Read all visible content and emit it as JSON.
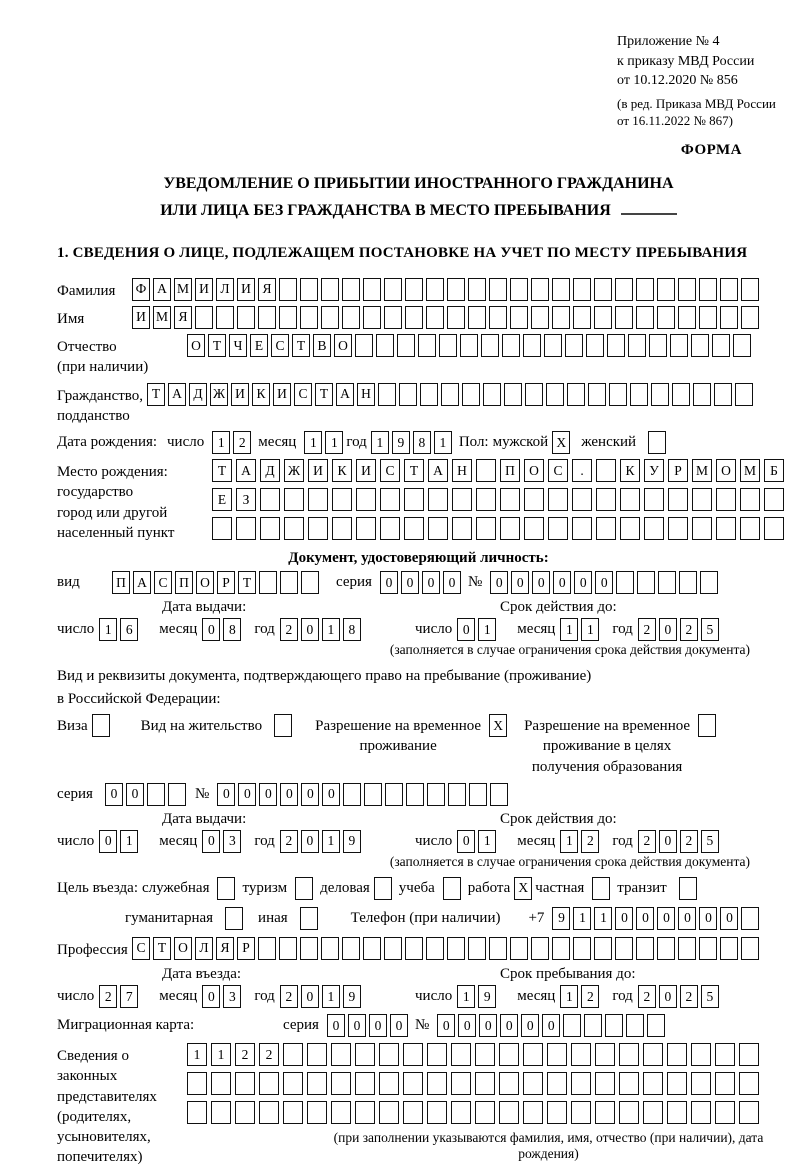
{
  "page": {
    "header": {
      "appendix_lines": [
        "Приложение № 4",
        "к приказу МВД России",
        "от 10.12.2020 № 856"
      ],
      "amendment_lines": [
        "(в ред. Приказа МВД России",
        "от 16.11.2022 № 867)"
      ],
      "form_label": "ФОРМА"
    },
    "title": {
      "line1": "УВЕДОМЛЕНИЕ О ПРИБЫТИИ ИНОСТРАННОГО ГРАЖДАНИНА",
      "line2": "ИЛИ ЛИЦА БЕЗ ГРАЖДАНСТВА В МЕСТО ПРЕБЫВАНИЯ"
    },
    "section1_heading": "1. СВЕДЕНИЯ О ЛИЦЕ, ПОДЛЕЖАЩЕМ ПОСТАНОВКЕ НА УЧЕТ ПО МЕСТУ ПРЕБЫВАНИЯ"
  },
  "labels": {
    "day": "число",
    "month": "месяц",
    "year": "год",
    "series": "серия",
    "number": "№",
    "issue_date": "Дата выдачи:",
    "valid_until": "Срок действия до:",
    "entry_date": "Дата въезда:",
    "stay_until": "Срок пребывания до:",
    "validity_note": "(заполняется в случае ограничения срока действия документа)"
  },
  "surname": {
    "label": "Фамилия",
    "cells": {
      "value": "ФАМИЛИЯ",
      "len": 30
    }
  },
  "name": {
    "label": "Имя",
    "cells": {
      "value": "ИМЯ",
      "len": 30
    }
  },
  "patronymic": {
    "label": "Отчество",
    "label2": "(при наличии)",
    "cells": {
      "value": "ОТЧЕСТВО",
      "len": 27
    }
  },
  "citizenship": {
    "label": "Гражданство,",
    "label2": "подданство",
    "cells": {
      "value": "ТАДЖИКИСТАН",
      "len": 29
    }
  },
  "birth_date": {
    "label": "Дата рождения:",
    "day": {
      "value": "12",
      "len": 2
    },
    "month": {
      "value": "11",
      "len": 2
    },
    "year": {
      "value": "1981",
      "len": 4
    },
    "sex_label": "Пол:",
    "male_label": "мужской",
    "male": {
      "value": "X",
      "len": 1
    },
    "female_label": "женский",
    "female": {
      "value": "",
      "len": 1
    }
  },
  "birth_place": {
    "label_lines": [
      "Место рождения:",
      "государство",
      "город или другой",
      "населенный пункт"
    ],
    "row1": {
      "value": "ТАДЖИКИСТАН ПОС. КУРМОМБ",
      "len": 24
    },
    "row2": {
      "value": "ЕЗ",
      "len": 24
    },
    "row3": {
      "value": "",
      "len": 24
    }
  },
  "identity_doc": {
    "heading": "Документ, удостоверяющий личность:",
    "kind_label": "вид",
    "kind": {
      "value": "ПАСПОРТ",
      "len": 10
    },
    "series": {
      "value": "0000",
      "len": 4
    },
    "number": {
      "value": "000000",
      "len": 11
    },
    "issue": {
      "day": {
        "value": "16",
        "len": 2
      },
      "month": {
        "value": "08",
        "len": 2
      },
      "year": {
        "value": "2018",
        "len": 4
      }
    },
    "valid": {
      "day": {
        "value": "01",
        "len": 2
      },
      "month": {
        "value": "11",
        "len": 2
      },
      "year": {
        "value": "2025",
        "len": 4
      }
    }
  },
  "residence_doc": {
    "line1": "Вид и реквизиты документа, подтверждающего право на пребывание (проживание)",
    "line2": "в Российской Федерации:",
    "visa_label": "Виза",
    "visa": {
      "value": "",
      "len": 1
    },
    "residence_permit_label": "Вид на жительство",
    "residence_permit": {
      "value": "",
      "len": 1
    },
    "temp_permit_label_lines": [
      "Разрешение на временное",
      "проживание"
    ],
    "temp_permit": {
      "value": "X",
      "len": 1
    },
    "edu_permit_label_lines": [
      "Разрешение на временное",
      "проживание в целях",
      "получения образования"
    ],
    "edu_permit": {
      "value": "",
      "len": 1
    },
    "series": {
      "value": "00",
      "len": 4
    },
    "number": {
      "value": "000000",
      "len": 14
    },
    "issue": {
      "day": {
        "value": "01",
        "len": 2
      },
      "month": {
        "value": "03",
        "len": 2
      },
      "year": {
        "value": "2019",
        "len": 4
      }
    },
    "valid": {
      "day": {
        "value": "01",
        "len": 2
      },
      "month": {
        "value": "12",
        "len": 2
      },
      "year": {
        "value": "2025",
        "len": 4
      }
    }
  },
  "purpose": {
    "label": "Цель въезда:",
    "options": [
      {
        "label": "служебная",
        "mark": {
          "value": "",
          "len": 1
        }
      },
      {
        "label": "туризм",
        "mark": {
          "value": "",
          "len": 1
        }
      },
      {
        "label": "деловая",
        "mark": {
          "value": "",
          "len": 1
        }
      },
      {
        "label": "учеба",
        "mark": {
          "value": "",
          "len": 1
        }
      },
      {
        "label": "работа",
        "mark": {
          "value": "X",
          "len": 1
        }
      },
      {
        "label": "частная",
        "mark": {
          "value": "",
          "len": 1
        }
      },
      {
        "label": "транзит",
        "mark": {
          "value": "",
          "len": 1
        }
      }
    ],
    "options2": [
      {
        "label": "гуманитарная",
        "mark": {
          "value": "",
          "len": 1
        }
      },
      {
        "label": "иная",
        "mark": {
          "value": "",
          "len": 1
        }
      }
    ]
  },
  "phone": {
    "label": "Телефон (при наличии)",
    "prefix": "+7",
    "cells": {
      "value": "911000000",
      "len": 10
    }
  },
  "profession": {
    "label": "Профессия",
    "cells": {
      "value": "СТОЛЯР",
      "len": 30
    }
  },
  "entry": {
    "date": {
      "day": {
        "value": "27",
        "len": 2
      },
      "month": {
        "value": "03",
        "len": 2
      },
      "year": {
        "value": "2019",
        "len": 4
      }
    },
    "stay": {
      "day": {
        "value": "19",
        "len": 2
      },
      "month": {
        "value": "12",
        "len": 2
      },
      "year": {
        "value": "2025",
        "len": 4
      }
    }
  },
  "migration_card": {
    "label": "Миграционная карта:",
    "series": {
      "value": "0000",
      "len": 4
    },
    "number": {
      "value": "000000",
      "len": 11
    }
  },
  "representatives": {
    "label_lines": [
      "Сведения о",
      "законных",
      "представителях",
      "(родителях,",
      "усыновителях,",
      "попечителях)"
    ],
    "row1": {
      "value": "1122",
      "len": 24
    },
    "row2": {
      "value": "",
      "len": 24
    },
    "row3": {
      "value": "",
      "len": 24
    },
    "note": "(при заполнении указываются фамилия, имя, отчество (при наличии), дата рождения)"
  }
}
